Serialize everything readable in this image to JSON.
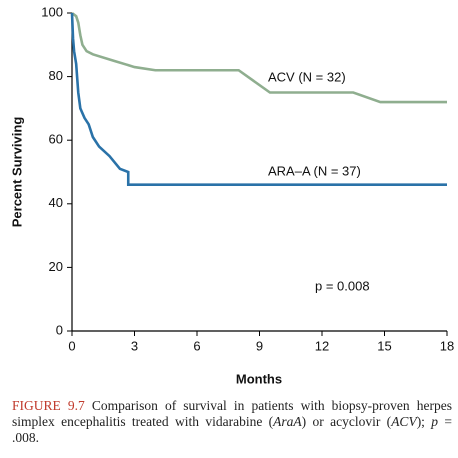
{
  "chart_data": {
    "type": "line",
    "y_label": "Percent Surviving",
    "x_label": "Months",
    "xlim": [
      0,
      18
    ],
    "xticks": [
      0,
      3,
      6,
      9,
      12,
      15,
      18
    ],
    "ylim": [
      0,
      100
    ],
    "yticks": [
      0,
      20,
      40,
      60,
      80,
      100
    ],
    "series": [
      {
        "name": "ACV (N = 32)",
        "color": "#8fae8f",
        "x": [
          0,
          0.2,
          0.3,
          0.4,
          0.5,
          0.7,
          1,
          2,
          3,
          4,
          8,
          9.5,
          13.5,
          14.8,
          18
        ],
        "values": [
          100,
          99,
          97,
          93,
          90,
          88,
          87,
          85,
          83,
          82,
          82,
          75,
          75,
          72,
          72
        ]
      },
      {
        "name": "ARA–A (N = 37)",
        "color": "#2a72a8",
        "x": [
          0,
          0.05,
          0.1,
          0.2,
          0.3,
          0.4,
          0.6,
          0.8,
          1,
          1.3,
          1.8,
          2.3,
          2.7,
          2.7,
          18
        ],
        "values": [
          100,
          92,
          88,
          84,
          75,
          70,
          67,
          65,
          61,
          58,
          55,
          51,
          50,
          46,
          46
        ]
      }
    ],
    "annotations": [
      "p = 0.008"
    ]
  },
  "caption": {
    "label": "FIGURE 9.7",
    "parts": [
      "Comparison of survival in patients with biopsy-proven herpes simplex encephalitis treated with vidarabine (",
      "AraA",
      ") or acyclovir (",
      "ACV",
      "); ",
      "p",
      " = .008."
    ]
  }
}
